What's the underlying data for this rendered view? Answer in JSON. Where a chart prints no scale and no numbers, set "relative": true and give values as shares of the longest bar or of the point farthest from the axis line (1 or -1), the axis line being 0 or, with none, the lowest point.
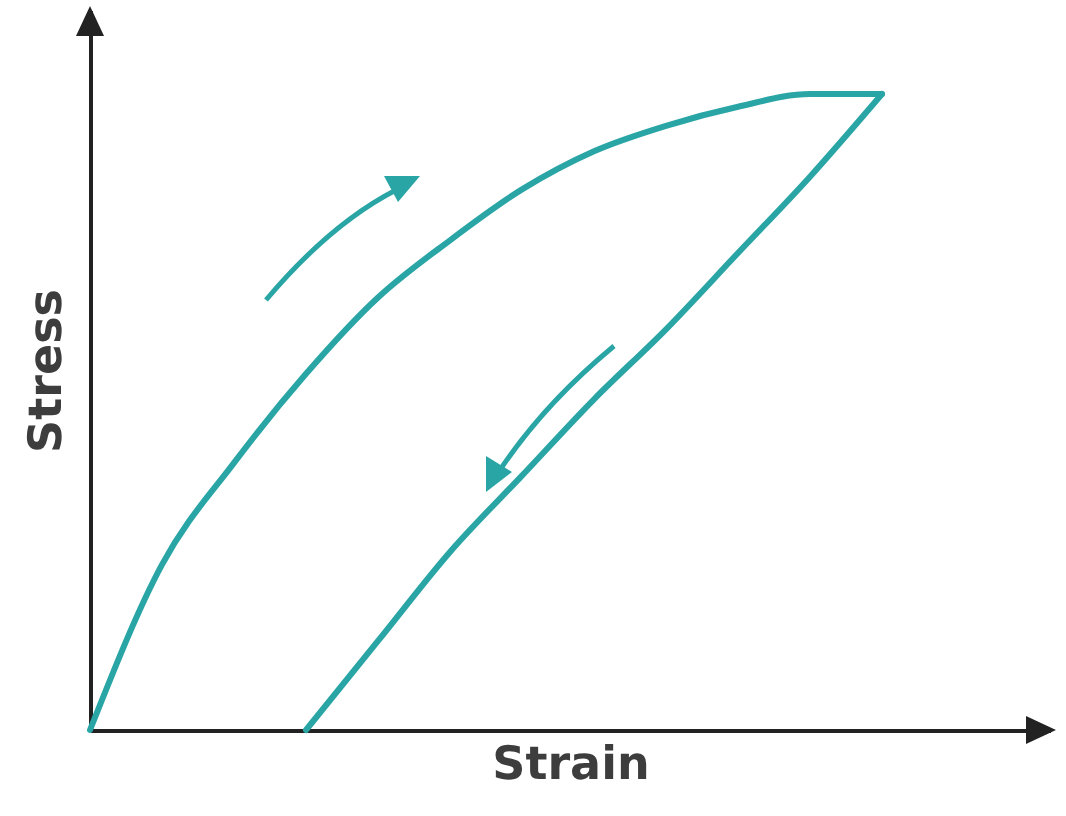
{
  "chart_data": {
    "type": "line",
    "relative": true,
    "xlabel": "Strain",
    "ylabel": "Stress",
    "categories": [
      null,
      null,
      null,
      null,
      null,
      null,
      null,
      null,
      null,
      null,
      null,
      null
    ],
    "series": [
      {
        "color": "#2aa5a5",
        "values": [
          0,
          0.26,
          0.42,
          0.56,
          0.68,
          0.77,
          0.85,
          0.91,
          0.95,
          0.98,
          1.0,
          1.0
        ]
      },
      {
        "color": "#2aa5a5",
        "values": [
          null,
          null,
          null,
          0,
          0.14,
          0.28,
          0.4,
          0.52,
          0.63,
          0.75,
          0.87,
          1.0
        ]
      }
    ],
    "grid": false,
    "tick_labels": false,
    "marker": "none",
    "line_style": "solid"
  }
}
